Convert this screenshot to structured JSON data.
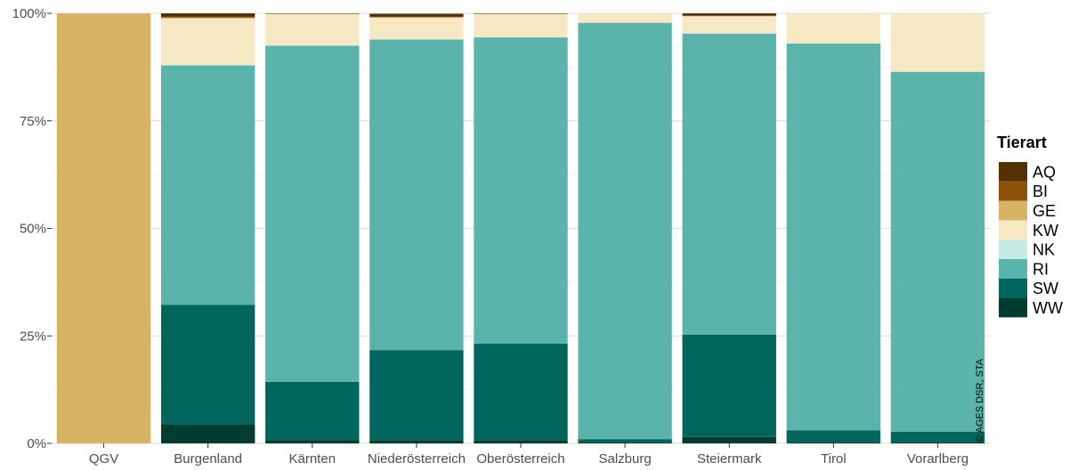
{
  "chart_data": {
    "type": "bar",
    "stacked": true,
    "normalized": true,
    "categories": [
      "QGV",
      "Burgenland",
      "Kärnten",
      "Niederösterreich",
      "Oberösterreich",
      "Salzburg",
      "Steiermark",
      "Tirol",
      "Vorarlberg"
    ],
    "ylim": [
      0,
      1
    ],
    "yticks": [
      {
        "value": 0,
        "label": "0%"
      },
      {
        "value": 0.25,
        "label": "25%"
      },
      {
        "value": 0.5,
        "label": "50%"
      },
      {
        "value": 0.75,
        "label": "75%"
      },
      {
        "value": 1,
        "label": "100%"
      }
    ],
    "grid": true,
    "legend": {
      "title": "Tierart",
      "position": "right"
    },
    "series": [
      {
        "name": "WW",
        "color": "#003c30",
        "values": [
          0,
          0.045,
          0.008,
          0.007,
          0.007,
          0.002,
          0.015,
          0.002,
          0.002
        ]
      },
      {
        "name": "SW",
        "color": "#01665e",
        "values": [
          0,
          0.277,
          0.135,
          0.21,
          0.225,
          0.008,
          0.238,
          0.028,
          0.025
        ]
      },
      {
        "name": "RI",
        "color": "#5ab4ac",
        "values": [
          0,
          0.557,
          0.782,
          0.722,
          0.712,
          0.968,
          0.7,
          0.9,
          0.837
        ]
      },
      {
        "name": "NK",
        "color": "#c7eae5",
        "values": [
          0,
          0.001,
          0.001,
          0.001,
          0.001,
          0.001,
          0.001,
          0.001,
          0.001
        ]
      },
      {
        "name": "KW",
        "color": "#f6e8c3",
        "values": [
          0,
          0.108,
          0.072,
          0.05,
          0.053,
          0.021,
          0.039,
          0.069,
          0.135
        ]
      },
      {
        "name": "GE",
        "color": "#d8b365",
        "values": [
          1,
          0.002,
          0.001,
          0.001,
          0.001,
          0,
          0.001,
          0,
          0
        ]
      },
      {
        "name": "BI",
        "color": "#8c510a",
        "values": [
          0,
          0.002,
          0.001,
          0.001,
          0.001,
          0,
          0.001,
          0,
          0
        ]
      },
      {
        "name": "AQ",
        "color": "#543005",
        "values": [
          0,
          0.008,
          0,
          0.007,
          0,
          0,
          0.005,
          0,
          0
        ]
      }
    ],
    "legend_order": [
      "AQ",
      "BI",
      "GE",
      "KW",
      "NK",
      "RI",
      "SW",
      "WW"
    ],
    "annotation": "© AGES DSR, STA"
  }
}
